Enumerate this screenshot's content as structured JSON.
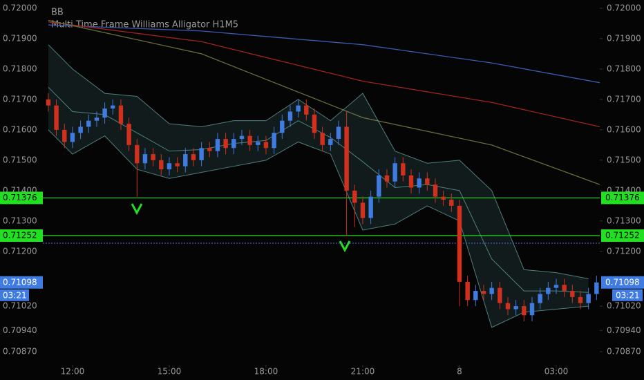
{
  "chart_data": {
    "type": "candlestick",
    "indicators": [
      "BB",
      "Multi Time Frame Williams Alligator H1M5"
    ],
    "xlim": [
      11.08,
      28.35
    ],
    "xticks": [
      {
        "value": 12,
        "label": "12:00"
      },
      {
        "value": 15,
        "label": "15:00"
      },
      {
        "value": 18,
        "label": "18:00"
      },
      {
        "value": 21,
        "label": "21:00"
      },
      {
        "value": 24,
        "label": "8"
      },
      {
        "value": 27,
        "label": "03:00"
      }
    ],
    "ylim": [
      0.70827,
      0.72027
    ],
    "yticks": [
      {
        "value": 0.72,
        "label": "0.72000"
      },
      {
        "value": 0.719,
        "label": "0.71900"
      },
      {
        "value": 0.718,
        "label": "0.71800"
      },
      {
        "value": 0.717,
        "label": "0.71700"
      },
      {
        "value": 0.716,
        "label": "0.71600"
      },
      {
        "value": 0.715,
        "label": "0.71500"
      },
      {
        "value": 0.714,
        "label": "0.71400"
      },
      {
        "value": 0.713,
        "label": "0.71300"
      },
      {
        "value": 0.712,
        "label": "0.71200"
      },
      {
        "value": 0.7102,
        "label": "0.71020"
      },
      {
        "value": 0.7094,
        "label": "0.70940"
      },
      {
        "value": 0.7087,
        "label": "0.70870"
      }
    ],
    "up_color": "#3f7be0",
    "down_color": "#d0301e",
    "candles": {
      "x": [
        11.25,
        11.5,
        11.75,
        12,
        12.25,
        12.5,
        12.75,
        13,
        13.25,
        13.5,
        13.75,
        14,
        14.25,
        14.5,
        14.75,
        15,
        15.25,
        15.5,
        15.75,
        16,
        16.25,
        16.5,
        16.75,
        17,
        17.25,
        17.5,
        17.75,
        18,
        18.25,
        18.5,
        18.75,
        19,
        19.25,
        19.5,
        19.75,
        20,
        20.25,
        20.5,
        20.75,
        21,
        21.25,
        21.5,
        21.75,
        22,
        22.25,
        22.5,
        22.75,
        23,
        23.25,
        23.5,
        23.75,
        24,
        24.25,
        24.5,
        24.75,
        25,
        25.25,
        25.5,
        25.75,
        26,
        26.25,
        26.5,
        26.75,
        27,
        27.25,
        27.5,
        27.75,
        28,
        28.25
      ],
      "open": [
        0.717,
        0.7168,
        0.716,
        0.7156,
        0.7159,
        0.7161,
        0.7163,
        0.7164,
        0.7167,
        0.7168,
        0.7162,
        0.7155,
        0.7149,
        0.7152,
        0.715,
        0.7147,
        0.7149,
        0.7148,
        0.7152,
        0.715,
        0.7154,
        0.7153,
        0.7157,
        0.7154,
        0.7157,
        0.7158,
        0.7155,
        0.7156,
        0.7154,
        0.7159,
        0.7163,
        0.7166,
        0.7168,
        0.7165,
        0.7159,
        0.7155,
        0.7157,
        0.7161,
        0.714,
        0.7136,
        0.7131,
        0.7138,
        0.7145,
        0.7143,
        0.7149,
        0.7145,
        0.7141,
        0.7144,
        0.7142,
        0.7138,
        0.7137,
        0.7135,
        0.711,
        0.7104,
        0.7107,
        0.7106,
        0.7108,
        0.7103,
        0.7101,
        0.7102,
        0.7099,
        0.7103,
        0.7106,
        0.7108,
        0.7109,
        0.7107,
        0.7105,
        0.7103,
        0.7106
      ],
      "high": [
        0.7172,
        0.717,
        0.7162,
        0.7161,
        0.7163,
        0.7165,
        0.7166,
        0.7169,
        0.717,
        0.717,
        0.7164,
        0.7157,
        0.7154,
        0.7154,
        0.7152,
        0.7151,
        0.7151,
        0.7154,
        0.7154,
        0.7156,
        0.7156,
        0.7159,
        0.7159,
        0.7159,
        0.716,
        0.716,
        0.7158,
        0.7158,
        0.7161,
        0.7165,
        0.7168,
        0.717,
        0.717,
        0.7167,
        0.7161,
        0.7159,
        0.7163,
        0.7166,
        0.7142,
        0.7138,
        0.714,
        0.7147,
        0.7147,
        0.7151,
        0.7151,
        0.7147,
        0.7146,
        0.7146,
        0.7144,
        0.714,
        0.7139,
        0.7137,
        0.7112,
        0.7109,
        0.7109,
        0.711,
        0.711,
        0.7105,
        0.7104,
        0.7104,
        0.7105,
        0.7108,
        0.711,
        0.7111,
        0.7111,
        0.7109,
        0.7107,
        0.7108,
        0.7112
      ],
      "low": [
        0.7166,
        0.7158,
        0.7154,
        0.7154,
        0.7157,
        0.7159,
        0.7161,
        0.7162,
        0.7165,
        0.716,
        0.7153,
        0.7138,
        0.7147,
        0.7148,
        0.7145,
        0.7145,
        0.7146,
        0.7146,
        0.7148,
        0.7148,
        0.7151,
        0.7151,
        0.7152,
        0.7152,
        0.7155,
        0.7153,
        0.7153,
        0.7152,
        0.7152,
        0.7157,
        0.7161,
        0.7164,
        0.7163,
        0.7157,
        0.7153,
        0.7153,
        0.7155,
        0.7125,
        0.7128,
        0.7129,
        0.7129,
        0.7136,
        0.7141,
        0.7141,
        0.7143,
        0.7139,
        0.7139,
        0.714,
        0.7136,
        0.7135,
        0.7133,
        0.7102,
        0.7102,
        0.7102,
        0.7104,
        0.7104,
        0.7101,
        0.7099,
        0.7099,
        0.7097,
        0.7097,
        0.7101,
        0.7104,
        0.7106,
        0.7105,
        0.7103,
        0.7101,
        0.7101,
        0.7104
      ],
      "close": [
        0.7168,
        0.716,
        0.7156,
        0.7159,
        0.7161,
        0.7163,
        0.7164,
        0.7167,
        0.7168,
        0.7162,
        0.7155,
        0.7149,
        0.7152,
        0.715,
        0.7147,
        0.7149,
        0.7148,
        0.7152,
        0.715,
        0.7154,
        0.7153,
        0.7157,
        0.7154,
        0.7157,
        0.7158,
        0.7155,
        0.7156,
        0.7154,
        0.7159,
        0.7163,
        0.7166,
        0.7168,
        0.7165,
        0.7159,
        0.7155,
        0.7157,
        0.7161,
        0.714,
        0.7136,
        0.7131,
        0.7138,
        0.7145,
        0.7143,
        0.7149,
        0.7145,
        0.7141,
        0.7144,
        0.7142,
        0.7138,
        0.7137,
        0.7135,
        0.711,
        0.7104,
        0.7107,
        0.7106,
        0.7108,
        0.7103,
        0.7101,
        0.7102,
        0.7099,
        0.7103,
        0.7106,
        0.7108,
        0.7109,
        0.7107,
        0.7105,
        0.7103,
        0.7106,
        0.71098
      ]
    },
    "bands": {
      "x": [
        11.25,
        12,
        13,
        14,
        15,
        16,
        17,
        18,
        19,
        20,
        21,
        22,
        23,
        24,
        25,
        26,
        27,
        28
      ],
      "upper": [
        0.7188,
        0.718,
        0.7172,
        0.7171,
        0.7162,
        0.7161,
        0.7163,
        0.7163,
        0.717,
        0.7163,
        0.7172,
        0.7153,
        0.7149,
        0.715,
        0.714,
        0.7114,
        0.7113,
        0.7111
      ],
      "middle": [
        0.7174,
        0.7166,
        0.7165,
        0.7159,
        0.7153,
        0.71535,
        0.71555,
        0.71565,
        0.7163,
        0.71575,
        0.71495,
        0.7141,
        0.7142,
        0.714,
        0.71175,
        0.7107,
        0.7107,
        0.71065
      ],
      "lower": [
        0.716,
        0.7152,
        0.7158,
        0.7147,
        0.7144,
        0.7146,
        0.7148,
        0.715,
        0.7156,
        0.7152,
        0.7127,
        0.7129,
        0.7135,
        0.713,
        0.7095,
        0.71,
        0.7101,
        0.7102
      ],
      "line_color": "#5f9b98",
      "fill_color": "#5f9b98"
    },
    "series": [
      {
        "x": [
          11.25,
          16,
          21,
          25,
          28.35
        ],
        "values": [
          0.71945,
          0.71925,
          0.7188,
          0.7182,
          0.71755
        ],
        "color": "#3a5bb0"
      },
      {
        "x": [
          11.25,
          16,
          21,
          25,
          28.35
        ],
        "values": [
          0.71955,
          0.7189,
          0.7176,
          0.7169,
          0.7161
        ],
        "color": "#9e2420"
      },
      {
        "x": [
          11.25,
          16,
          21,
          25,
          28.35
        ],
        "values": [
          0.7196,
          0.7185,
          0.7164,
          0.7155,
          0.7142
        ],
        "color": "#6b6b3a"
      }
    ],
    "levels": [
      {
        "value": 0.71376,
        "label": "0.71376",
        "color": "#21e021"
      },
      {
        "value": 0.71252,
        "label": "0.71252",
        "color": "#21e021"
      }
    ],
    "dotted_level": {
      "value": 0.71227,
      "color": "#4a6fd8"
    },
    "last_price": {
      "value": 0.71098,
      "label": "0.71098",
      "timer": "03:21",
      "color": "#3f7be0"
    }
  }
}
